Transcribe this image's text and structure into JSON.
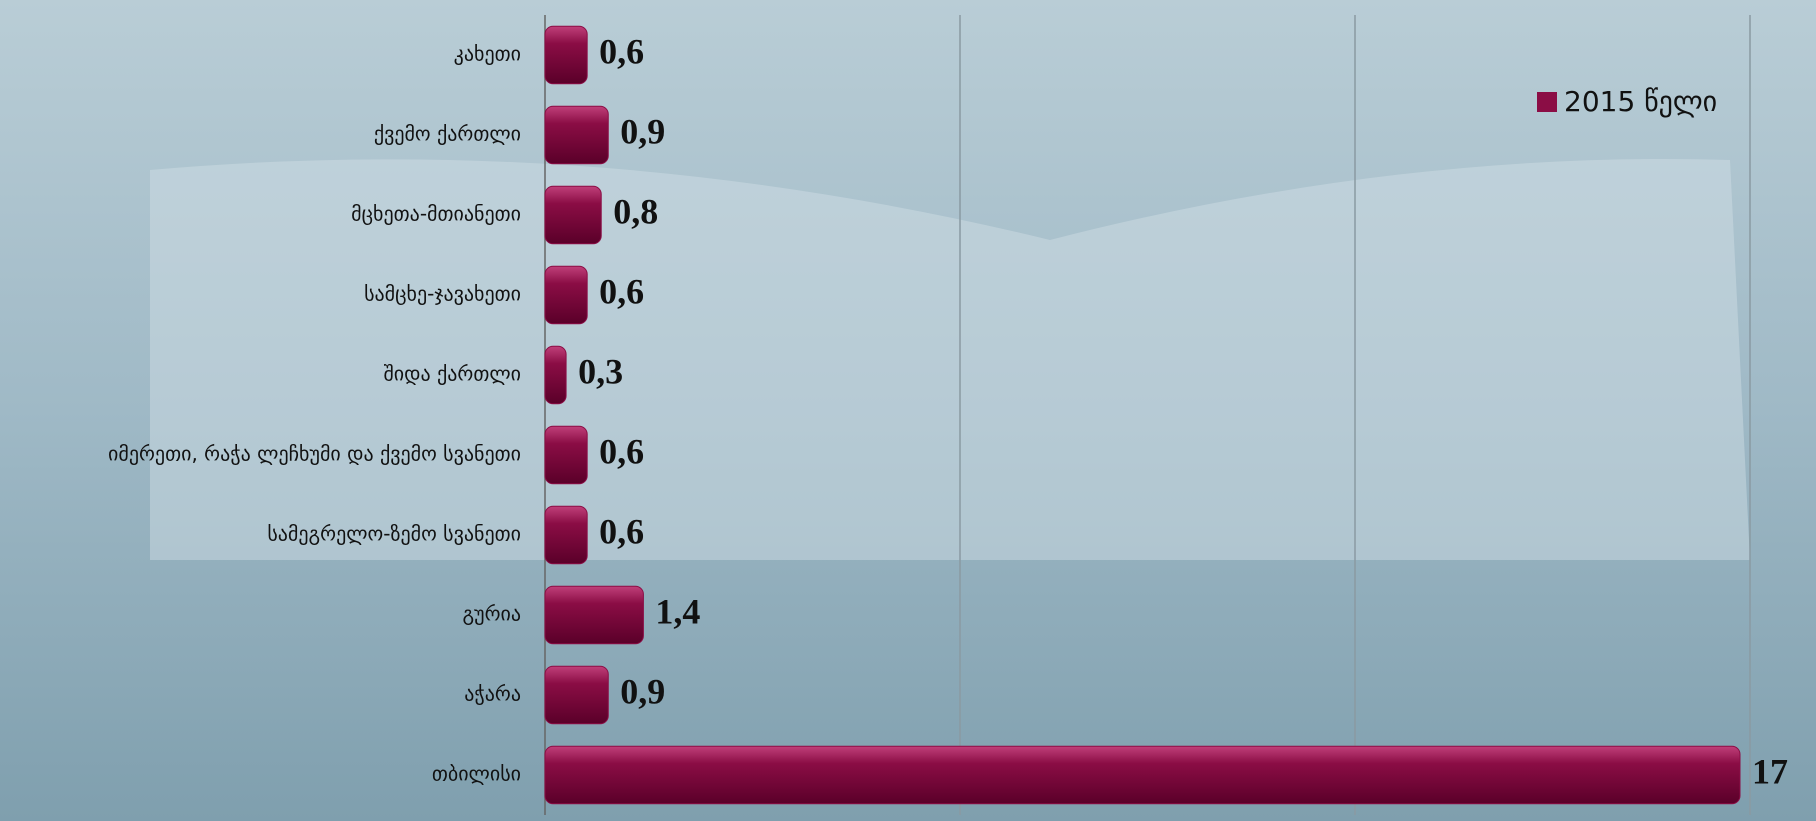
{
  "chart_data": {
    "type": "bar",
    "orientation": "horizontal",
    "categories": [
      "კახეთი",
      "ქვემო ქართლი",
      "მცხეთა-მთიანეთი",
      "სამცხე-ჯავახეთი",
      "შიდა ქართლი",
      "იმერეთი, რაჭა ლეჩხუმი და ქვემო სვანეთი",
      "სამეგრელო-ზემო სვანეთი",
      "გურია",
      "აჭარა",
      "თბილისი"
    ],
    "series": [
      {
        "name": "2015 წელი",
        "color": "#8b0d45",
        "values": [
          0.6,
          0.9,
          0.8,
          0.6,
          0.3,
          0.6,
          0.6,
          1.4,
          0.9,
          17
        ],
        "value_labels": [
          "0,6",
          "0,9",
          "0,8",
          "0,6",
          "0,3",
          "0,6",
          "0,6",
          "1,4",
          "0,9",
          "17"
        ]
      }
    ],
    "xlim": [
      0,
      17
    ],
    "legend": "top-right"
  }
}
